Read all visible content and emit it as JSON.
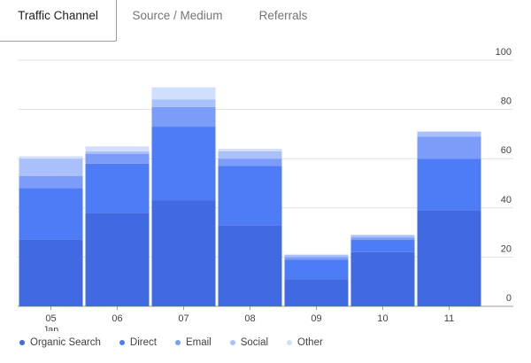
{
  "tabs": [
    {
      "label": "Traffic Channel",
      "active": true
    },
    {
      "label": "Source / Medium",
      "active": false
    },
    {
      "label": "Referrals",
      "active": false
    }
  ],
  "chart_data": {
    "type": "bar",
    "stacked": true,
    "categories": [
      "05",
      "06",
      "07",
      "08",
      "09",
      "10",
      "11"
    ],
    "category_sublabels": [
      "Jan",
      "",
      "",
      "",
      "",
      "",
      ""
    ],
    "ylim": [
      0,
      100
    ],
    "yticks": [
      0,
      20,
      40,
      60,
      80,
      100
    ],
    "y_axis_side": "right",
    "grid": true,
    "legend_position": "bottom-left",
    "series": [
      {
        "name": "Organic Search",
        "color": "#4169e1",
        "values": [
          27,
          38,
          43,
          33,
          11,
          22,
          39
        ]
      },
      {
        "name": "Direct",
        "color": "#4d7cf6",
        "values": [
          21,
          20,
          30,
          24,
          8,
          5,
          21
        ]
      },
      {
        "name": "Email",
        "color": "#7b9cf8",
        "values": [
          5,
          4,
          8,
          3,
          1,
          1,
          9
        ]
      },
      {
        "name": "Social",
        "color": "#a9c0fa",
        "values": [
          7,
          1,
          3,
          3,
          1,
          1,
          2
        ]
      },
      {
        "name": "Other",
        "color": "#d2defd",
        "values": [
          1,
          2,
          5,
          1,
          0,
          0,
          0
        ]
      }
    ]
  }
}
